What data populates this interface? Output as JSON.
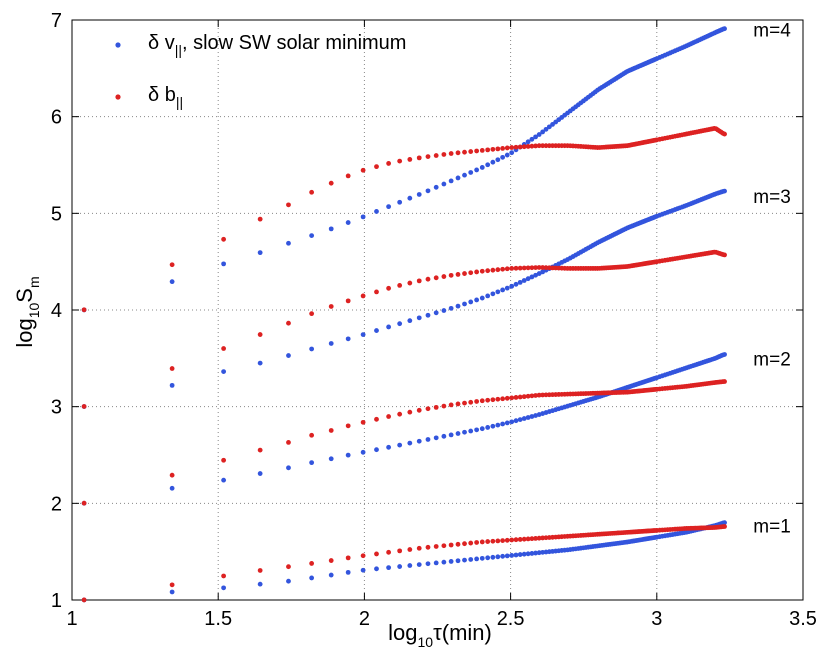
{
  "chart_data": {
    "type": "scatter",
    "title": "",
    "xlabel": {
      "main": "log",
      "sub": "10",
      "rest": "τ(min)"
    },
    "ylabel": {
      "main": "log",
      "sub": "10",
      "rest": "S",
      "sub2": "m"
    },
    "xlim": [
      1,
      3.5
    ],
    "ylim": [
      1,
      7
    ],
    "xticks": [
      "1",
      "1.5",
      "2",
      "2.5",
      "3",
      "3.5"
    ],
    "yticks": [
      "1",
      "2",
      "3",
      "4",
      "5",
      "6",
      "7"
    ],
    "grid": true,
    "legend_position": "top-left",
    "colors": {
      "v": "#3355dd",
      "b": "#dd2222"
    },
    "legend": [
      {
        "series": "v",
        "pre": "δ v",
        "sub": "||",
        "post": ", slow SW solar minimum"
      },
      {
        "series": "b",
        "pre": "δ b",
        "sub": "||",
        "post": ""
      }
    ],
    "annotations": [
      {
        "text": "m=4",
        "x": 3.33,
        "y": 6.9
      },
      {
        "text": "m=3",
        "x": 3.33,
        "y": 5.18
      },
      {
        "text": "m=2",
        "x": 3.33,
        "y": 3.5
      },
      {
        "text": "m=1",
        "x": 3.33,
        "y": 1.77
      }
    ],
    "series": [
      {
        "name": "δ v|| m=1",
        "color": "v",
        "points": [
          [
            1.04,
            1.0
          ],
          [
            1.33,
            1.08
          ],
          [
            1.5,
            1.12
          ],
          [
            1.63,
            1.16
          ],
          [
            1.73,
            1.19
          ],
          [
            1.8,
            1.22
          ],
          [
            1.87,
            1.25
          ],
          [
            1.93,
            1.28
          ],
          [
            1.98,
            1.3
          ],
          [
            2.0,
            1.31
          ],
          [
            2.1,
            1.34
          ],
          [
            2.2,
            1.37
          ],
          [
            2.3,
            1.4
          ],
          [
            2.4,
            1.43
          ],
          [
            2.5,
            1.46
          ],
          [
            2.6,
            1.49
          ],
          [
            2.7,
            1.52
          ],
          [
            2.8,
            1.56
          ],
          [
            2.9,
            1.6
          ],
          [
            3.0,
            1.65
          ],
          [
            3.1,
            1.7
          ],
          [
            3.2,
            1.77
          ],
          [
            3.23,
            1.8
          ]
        ]
      },
      {
        "name": "δ b|| m=1",
        "color": "b",
        "points": [
          [
            1.04,
            1.0
          ],
          [
            1.33,
            1.15
          ],
          [
            1.5,
            1.24
          ],
          [
            1.63,
            1.3
          ],
          [
            1.73,
            1.34
          ],
          [
            1.8,
            1.37
          ],
          [
            1.87,
            1.4
          ],
          [
            1.93,
            1.43
          ],
          [
            1.98,
            1.45
          ],
          [
            2.0,
            1.46
          ],
          [
            2.1,
            1.5
          ],
          [
            2.2,
            1.54
          ],
          [
            2.3,
            1.57
          ],
          [
            2.4,
            1.6
          ],
          [
            2.5,
            1.62
          ],
          [
            2.6,
            1.64
          ],
          [
            2.7,
            1.66
          ],
          [
            2.8,
            1.68
          ],
          [
            2.9,
            1.7
          ],
          [
            3.0,
            1.72
          ],
          [
            3.1,
            1.74
          ],
          [
            3.2,
            1.75
          ],
          [
            3.23,
            1.76
          ]
        ]
      },
      {
        "name": "δ v|| m=2",
        "color": "v",
        "points": [
          [
            1.04,
            2.0
          ],
          [
            1.33,
            2.15
          ],
          [
            1.5,
            2.23
          ],
          [
            1.63,
            2.3
          ],
          [
            1.73,
            2.36
          ],
          [
            1.8,
            2.41
          ],
          [
            1.87,
            2.45
          ],
          [
            1.93,
            2.49
          ],
          [
            1.98,
            2.52
          ],
          [
            2.0,
            2.53
          ],
          [
            2.1,
            2.59
          ],
          [
            2.2,
            2.65
          ],
          [
            2.3,
            2.71
          ],
          [
            2.4,
            2.77
          ],
          [
            2.5,
            2.84
          ],
          [
            2.6,
            2.92
          ],
          [
            2.7,
            3.01
          ],
          [
            2.8,
            3.1
          ],
          [
            2.9,
            3.2
          ],
          [
            3.0,
            3.3
          ],
          [
            3.1,
            3.4
          ],
          [
            3.2,
            3.5
          ],
          [
            3.23,
            3.54
          ]
        ]
      },
      {
        "name": "δ b|| m=2",
        "color": "b",
        "points": [
          [
            1.04,
            2.0
          ],
          [
            1.33,
            2.28
          ],
          [
            1.5,
            2.43
          ],
          [
            1.63,
            2.54
          ],
          [
            1.73,
            2.62
          ],
          [
            1.8,
            2.69
          ],
          [
            1.87,
            2.74
          ],
          [
            1.93,
            2.79
          ],
          [
            1.98,
            2.83
          ],
          [
            2.0,
            2.84
          ],
          [
            2.1,
            2.91
          ],
          [
            2.2,
            2.97
          ],
          [
            2.3,
            3.02
          ],
          [
            2.4,
            3.06
          ],
          [
            2.5,
            3.09
          ],
          [
            2.6,
            3.12
          ],
          [
            2.7,
            3.13
          ],
          [
            2.8,
            3.14
          ],
          [
            2.9,
            3.15
          ],
          [
            3.0,
            3.18
          ],
          [
            3.1,
            3.21
          ],
          [
            3.2,
            3.25
          ],
          [
            3.23,
            3.26
          ]
        ]
      },
      {
        "name": "δ v|| m=3",
        "color": "v",
        "points": [
          [
            1.04,
            3.0
          ],
          [
            1.33,
            3.21
          ],
          [
            1.5,
            3.35
          ],
          [
            1.63,
            3.44
          ],
          [
            1.73,
            3.52
          ],
          [
            1.8,
            3.58
          ],
          [
            1.87,
            3.64
          ],
          [
            1.93,
            3.69
          ],
          [
            1.98,
            3.73
          ],
          [
            2.0,
            3.75
          ],
          [
            2.1,
            3.84
          ],
          [
            2.2,
            3.93
          ],
          [
            2.3,
            4.02
          ],
          [
            2.4,
            4.12
          ],
          [
            2.5,
            4.24
          ],
          [
            2.6,
            4.38
          ],
          [
            2.7,
            4.53
          ],
          [
            2.8,
            4.7
          ],
          [
            2.9,
            4.85
          ],
          [
            3.0,
            4.97
          ],
          [
            3.1,
            5.08
          ],
          [
            3.2,
            5.2
          ],
          [
            3.23,
            5.23
          ]
        ]
      },
      {
        "name": "δ b|| m=3",
        "color": "b",
        "points": [
          [
            1.04,
            3.0
          ],
          [
            1.33,
            3.38
          ],
          [
            1.5,
            3.58
          ],
          [
            1.63,
            3.73
          ],
          [
            1.73,
            3.85
          ],
          [
            1.8,
            3.94
          ],
          [
            1.87,
            4.02
          ],
          [
            1.93,
            4.08
          ],
          [
            1.98,
            4.13
          ],
          [
            2.0,
            4.15
          ],
          [
            2.1,
            4.24
          ],
          [
            2.2,
            4.31
          ],
          [
            2.3,
            4.36
          ],
          [
            2.4,
            4.4
          ],
          [
            2.5,
            4.43
          ],
          [
            2.6,
            4.44
          ],
          [
            2.7,
            4.43
          ],
          [
            2.8,
            4.43
          ],
          [
            2.9,
            4.45
          ],
          [
            3.0,
            4.5
          ],
          [
            3.1,
            4.55
          ],
          [
            3.2,
            4.6
          ],
          [
            3.23,
            4.57
          ]
        ]
      },
      {
        "name": "δ v|| m=4",
        "color": "v",
        "points": [
          [
            1.04,
            4.0
          ],
          [
            1.33,
            4.28
          ],
          [
            1.5,
            4.46
          ],
          [
            1.63,
            4.58
          ],
          [
            1.73,
            4.68
          ],
          [
            1.8,
            4.75
          ],
          [
            1.87,
            4.82
          ],
          [
            1.93,
            4.89
          ],
          [
            1.98,
            4.94
          ],
          [
            2.0,
            4.97
          ],
          [
            2.1,
            5.09
          ],
          [
            2.2,
            5.21
          ],
          [
            2.3,
            5.34
          ],
          [
            2.4,
            5.47
          ],
          [
            2.5,
            5.62
          ],
          [
            2.6,
            5.82
          ],
          [
            2.7,
            6.05
          ],
          [
            2.8,
            6.28
          ],
          [
            2.9,
            6.47
          ],
          [
            3.0,
            6.6
          ],
          [
            3.1,
            6.73
          ],
          [
            3.2,
            6.87
          ],
          [
            3.23,
            6.91
          ]
        ]
      },
      {
        "name": "δ b|| m=4",
        "color": "b",
        "points": [
          [
            1.04,
            4.0
          ],
          [
            1.33,
            4.45
          ],
          [
            1.5,
            4.7
          ],
          [
            1.63,
            4.92
          ],
          [
            1.73,
            5.07
          ],
          [
            1.8,
            5.19
          ],
          [
            1.87,
            5.29
          ],
          [
            1.93,
            5.37
          ],
          [
            1.98,
            5.43
          ],
          [
            2.0,
            5.45
          ],
          [
            2.1,
            5.53
          ],
          [
            2.2,
            5.58
          ],
          [
            2.3,
            5.62
          ],
          [
            2.4,
            5.65
          ],
          [
            2.5,
            5.68
          ],
          [
            2.6,
            5.7
          ],
          [
            2.7,
            5.7
          ],
          [
            2.8,
            5.68
          ],
          [
            2.9,
            5.7
          ],
          [
            3.0,
            5.76
          ],
          [
            3.1,
            5.82
          ],
          [
            3.2,
            5.88
          ],
          [
            3.23,
            5.82
          ]
        ]
      }
    ]
  }
}
